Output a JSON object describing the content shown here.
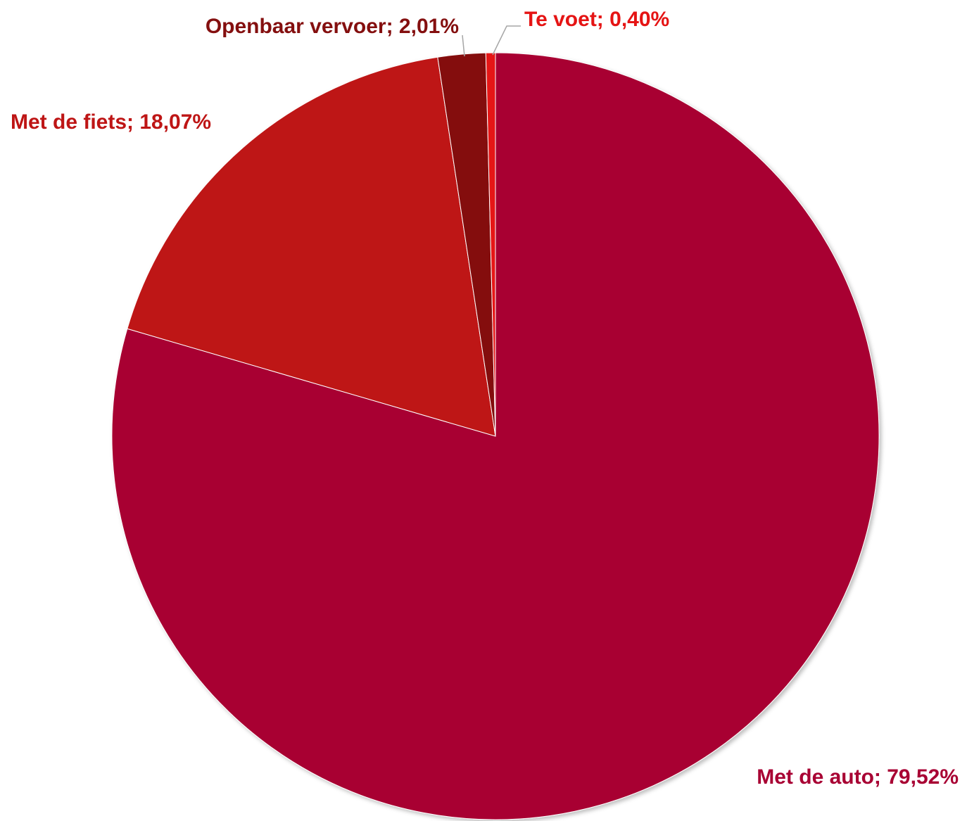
{
  "chart_data": {
    "type": "pie",
    "title": "",
    "slices": [
      {
        "name": "Met de auto",
        "value": 79.52,
        "label": "Met de auto; 79,52%",
        "color": "#a80033"
      },
      {
        "name": "Met de fiets",
        "value": 18.07,
        "label": "Met de fiets; 18,07%",
        "color": "#be1515"
      },
      {
        "name": "Openbaar vervoer",
        "value": 2.01,
        "label": "Openbaar vervoer; 2,01%",
        "color": "#840f0f"
      },
      {
        "name": "Te voet",
        "value": 0.4,
        "label": "Te voet; 0,40%",
        "color": "#e51414"
      }
    ],
    "start_angle": "12 o'clock",
    "direction": "clockwise",
    "legend": "none",
    "data_labels": "outside, category name and percentage"
  }
}
